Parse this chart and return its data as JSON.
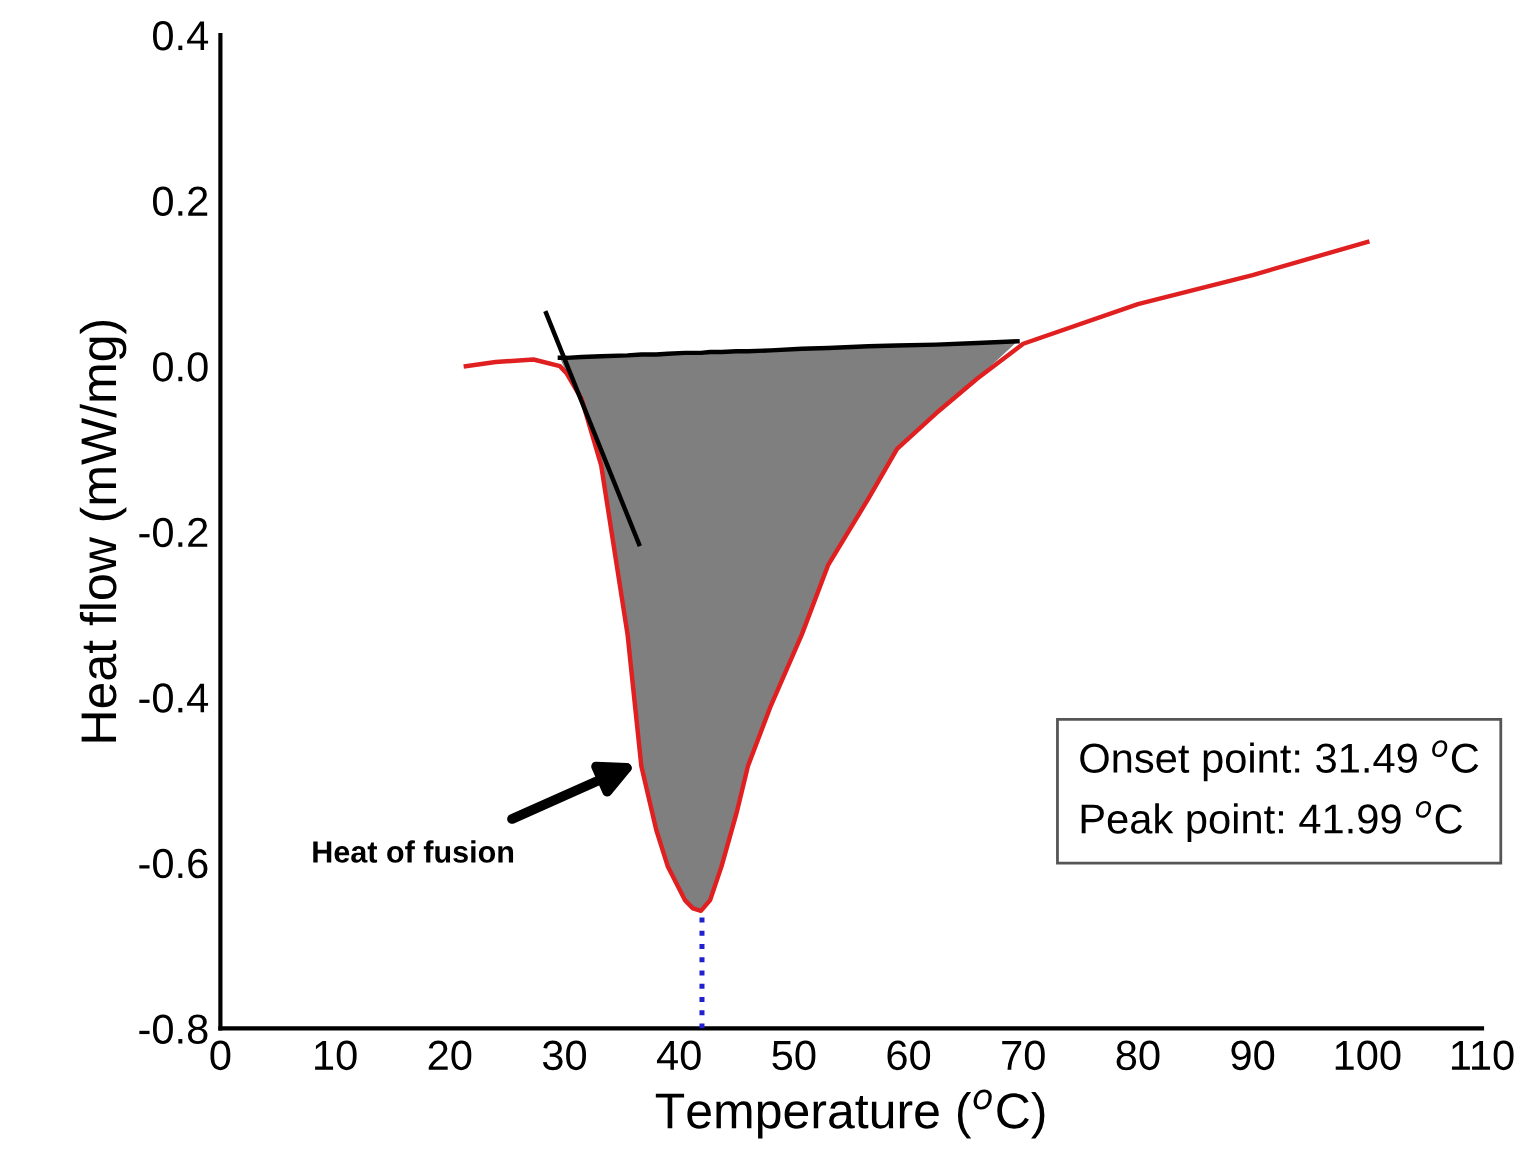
{
  "chart_data": {
    "type": "line",
    "xlabel": "Temperature ($^{o}$C)",
    "ylabel": "Heat flow (mW/mg)",
    "xlim": [
      0,
      110
    ],
    "xticks": [
      0,
      10,
      20,
      30,
      40,
      50,
      60,
      70,
      80,
      90,
      100,
      110
    ],
    "ylim": [
      -0.8,
      0.4
    ],
    "yticks": [
      {
        "value": -0.8,
        "label": "-0.8"
      },
      {
        "value": -0.6,
        "label": "-0.6"
      },
      {
        "value": -0.4,
        "label": "-0.4"
      },
      {
        "value": -0.2,
        "label": "-0.2"
      },
      {
        "value": 0.0,
        "label": "0.0"
      },
      {
        "value": 0.2,
        "label": "0.2"
      },
      {
        "value": 0.4,
        "label": "0.4"
      }
    ],
    "grid": false,
    "marker": "none",
    "series": [
      {
        "color": "#000000",
        "line_style": "solid",
        "x": [
          29.6,
          30.2,
          31.5,
          33.2,
          35.5,
          36.7,
          38,
          39,
          40.5,
          41.2,
          41.9,
          42.7,
          43.7,
          45,
          46,
          48,
          50.7,
          53,
          56.5,
          59,
          62.4,
          66,
          69.5
        ],
        "values": [
          0.01,
          0.01,
          0.011,
          0.012,
          0.013,
          0.014,
          0.014,
          0.015,
          0.016,
          0.016,
          0.016,
          0.017,
          0.017,
          0.018,
          0.018,
          0.019,
          0.021,
          0.022,
          0.024,
          0.025,
          0.026,
          0.028,
          0.03
        ],
        "upper": [
          0.01,
          0.01,
          0.011,
          0.012,
          0.013,
          0.014,
          0.014,
          0.015,
          0.016,
          0.016,
          0.016,
          0.017,
          0.017,
          0.018,
          0.018,
          0.019,
          0.021,
          0.022,
          0.024,
          0.025,
          0.026,
          0.028,
          0.03
        ],
        "lower": [
          0.01,
          -0.009,
          -0.04,
          -0.12,
          -0.324,
          -0.483,
          -0.56,
          -0.604,
          -0.645,
          -0.655,
          -0.658,
          -0.645,
          -0.604,
          -0.54,
          -0.483,
          -0.41,
          -0.324,
          -0.24,
          -0.16,
          -0.1,
          -0.057,
          -0.015,
          0.03
        ]
      },
      {
        "color": "#e02020",
        "line_style": "solid",
        "x": [
          21.4,
          24,
          27.3,
          29.6,
          30.2,
          31.5,
          33.2,
          35.5,
          36.7,
          38,
          39,
          40.5,
          41.2,
          41.9,
          42.7,
          43.7,
          45,
          46,
          48,
          50.7,
          53,
          56.5,
          59,
          62.4,
          66,
          70,
          80,
          90,
          100
        ],
        "values": [
          0.0,
          0.005,
          0.008,
          0.0,
          -0.009,
          -0.04,
          -0.12,
          -0.324,
          -0.483,
          -0.56,
          -0.604,
          -0.645,
          -0.655,
          -0.658,
          -0.645,
          -0.604,
          -0.54,
          -0.483,
          -0.41,
          -0.324,
          -0.24,
          -0.16,
          -0.1,
          -0.057,
          -0.015,
          0.027,
          0.075,
          0.11,
          0.15
        ]
      },
      {
        "color": "#000000",
        "line_style": "solid",
        "x": [
          28.4,
          36.5
        ],
        "values": [
          0.064,
          -0.215
        ]
      },
      {
        "color": "#2020d0",
        "line_style": "dotted",
        "x": [
          41.99,
          41.99
        ],
        "values": [
          -0.8,
          -0.658
        ]
      }
    ],
    "annotations": [
      {
        "text": "Heat of fusion",
        "x": 36.3,
        "y": -0.48
      },
      "Onset point: 31.49 $^{o}$C",
      "Peak point: 41.99 $^{o}$C"
    ]
  }
}
